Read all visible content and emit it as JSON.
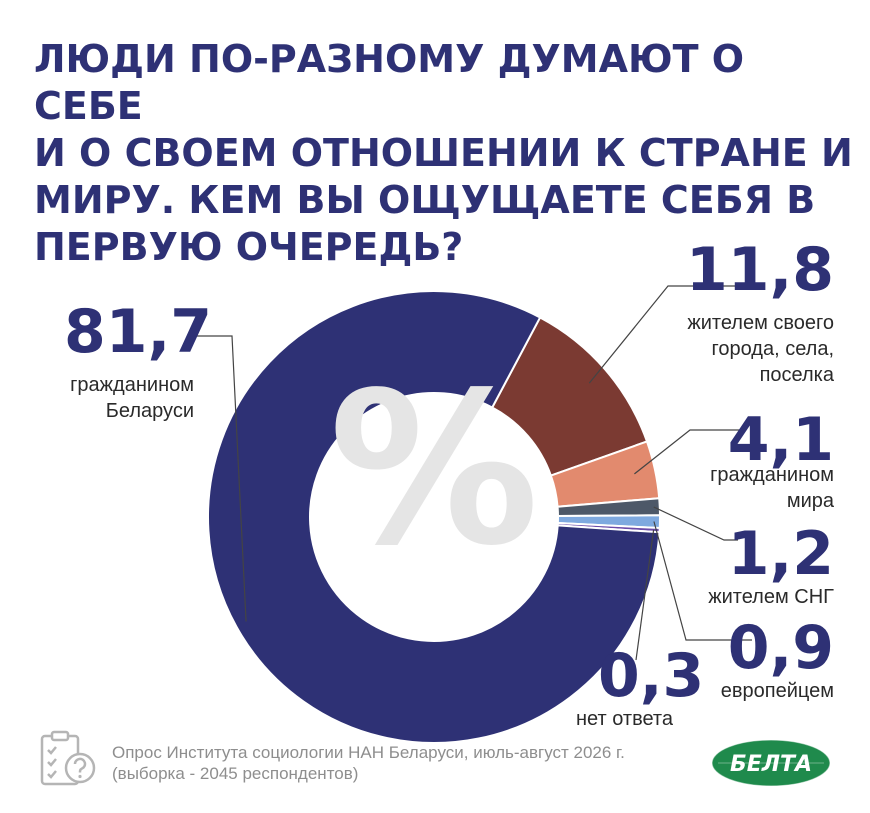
{
  "title": "ЛЮДИ ПО-РАЗНОМУ ДУМАЮТ О СЕБЕ\nИ О СВОЕМ ОТНОШЕНИИ К СТРАНЕ И\nМИРУ. КЕМ ВЫ ОЩУЩАЕТЕ СЕБЯ В\nПЕРВУЮ ОЧЕРЕДЬ?",
  "chart_data": {
    "type": "pie",
    "unit_symbol": "%",
    "slices": [
      {
        "value": 11.8,
        "value_label": "11,8",
        "label": "жителем своего\nгорода, села,\nпоселка",
        "color": "#7b3a32"
      },
      {
        "value": 4.1,
        "value_label": "4,1",
        "label": "гражданином\nмира",
        "color": "#e28a6e"
      },
      {
        "value": 1.2,
        "value_label": "1,2",
        "label": "жителем СНГ",
        "color": "#4d5868"
      },
      {
        "value": 0.9,
        "value_label": "0,9",
        "label": "европейцем",
        "color": "#7ea9df"
      },
      {
        "value": 0.3,
        "value_label": "0,3",
        "label": "нет ответа",
        "color": "#6a4aa8"
      },
      {
        "value": 81.7,
        "value_label": "81,7",
        "label": "гражданином\nБеларуси",
        "color": "#2e3175"
      }
    ]
  },
  "footer": {
    "source": "Опрос Института социологии НАН Беларуси, июль-август 2026 г.\n(выборка - 2045 респондентов)"
  },
  "logo": {
    "text": "БЕЛТА",
    "color": "#1f8a4c"
  },
  "icons": {
    "survey": "clipboard-question-icon"
  }
}
